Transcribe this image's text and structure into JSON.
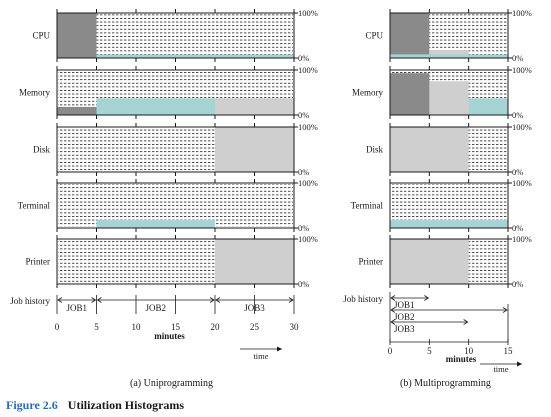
{
  "figure": {
    "label": "Figure 2.6",
    "title": "Utilization Histograms"
  },
  "chart_data": [
    {
      "type": "area",
      "title": "(a) Uniprogramming",
      "xlabel": "minutes",
      "time_label": "time",
      "xlim": [
        0,
        30
      ],
      "xticks": [
        0,
        5,
        10,
        15,
        20,
        25,
        30
      ],
      "ylim": [
        0,
        100
      ],
      "ytick_labels": [
        "100%",
        "0%"
      ],
      "job_history_label": "Job history",
      "resources": [
        {
          "name": "CPU",
          "segments": [
            {
              "x0": 0,
              "x1": 5,
              "value": 100,
              "color": "#8a8a8a"
            },
            {
              "x0": 5,
              "x1": 30,
              "value": 8,
              "color": "#a6d4d4"
            }
          ]
        },
        {
          "name": "Memory",
          "segments": [
            {
              "x0": 0,
              "x1": 5,
              "value": 18,
              "color": "#8a8a8a"
            },
            {
              "x0": 5,
              "x1": 20,
              "value": 37,
              "color": "#a6d4d4"
            },
            {
              "x0": 20,
              "x1": 30,
              "value": 37,
              "color": "#cfcfcf"
            }
          ]
        },
        {
          "name": "Disk",
          "segments": [
            {
              "x0": 20,
              "x1": 30,
              "value": 100,
              "color": "#cfcfcf"
            }
          ]
        },
        {
          "name": "Terminal",
          "segments": [
            {
              "x0": 5,
              "x1": 20,
              "value": 18,
              "color": "#a6d4d4"
            }
          ]
        },
        {
          "name": "Printer",
          "segments": [
            {
              "x0": 20,
              "x1": 30,
              "value": 100,
              "color": "#cfcfcf"
            }
          ]
        }
      ],
      "jobs": [
        {
          "name": "JOB1",
          "start": 0,
          "end": 5
        },
        {
          "name": "JOB2",
          "start": 5,
          "end": 20
        },
        {
          "name": "JOB3",
          "start": 20,
          "end": 30
        }
      ]
    },
    {
      "type": "area",
      "title": "(b) Multiprogramming",
      "xlabel": "minutes",
      "time_label": "time",
      "xlim": [
        0,
        15
      ],
      "xticks": [
        0,
        5,
        10,
        15
      ],
      "ylim": [
        0,
        100
      ],
      "ytick_labels": [
        "100%",
        "0%"
      ],
      "job_history_label": "Job history",
      "resources": [
        {
          "name": "CPU",
          "segments": [
            {
              "x0": 0,
              "x1": 5,
              "value": 100,
              "color": "#8a8a8a"
            },
            {
              "x0": 5,
              "x1": 10,
              "value": 18,
              "color": "#cfcfcf"
            },
            {
              "x0": 0,
              "x1": 15,
              "value": 8,
              "color": "#a6d4d4"
            }
          ]
        },
        {
          "name": "Memory",
          "segments": [
            {
              "x0": 0,
              "x1": 15,
              "value": 37,
              "color": "#a6d4d4"
            },
            {
              "x0": 0,
              "x1": 10,
              "value": 75,
              "color": "#cfcfcf"
            },
            {
              "x0": 0,
              "x1": 5,
              "value": 93,
              "color": "#8a8a8a"
            }
          ]
        },
        {
          "name": "Disk",
          "segments": [
            {
              "x0": 0,
              "x1": 10,
              "value": 100,
              "color": "#cfcfcf"
            }
          ]
        },
        {
          "name": "Terminal",
          "segments": [
            {
              "x0": 0,
              "x1": 15,
              "value": 18,
              "color": "#a6d4d4"
            }
          ]
        },
        {
          "name": "Printer",
          "segments": [
            {
              "x0": 0,
              "x1": 10,
              "value": 100,
              "color": "#cfcfcf"
            }
          ]
        }
      ],
      "jobs": [
        {
          "name": "JOB1",
          "start": 0,
          "end": 5
        },
        {
          "name": "JOB2",
          "start": 0,
          "end": 15
        },
        {
          "name": "JOB3",
          "start": 0,
          "end": 10
        }
      ]
    }
  ]
}
